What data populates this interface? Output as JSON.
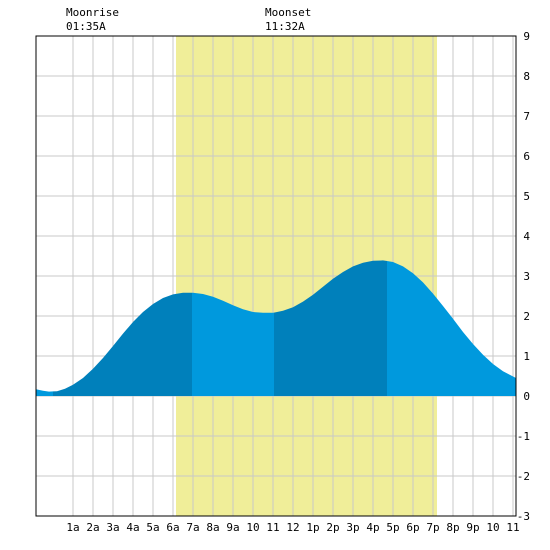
{
  "moon": {
    "rise_label": "Moonrise",
    "rise_time": "01:35A",
    "set_label": "Moonset",
    "set_time": "11:32A"
  },
  "chart_data": {
    "type": "area",
    "x_unit": "hour of day",
    "xlim": [
      -0.85,
      23.15
    ],
    "ylim": [
      -3,
      9
    ],
    "grid": true,
    "x_ticks": [
      {
        "hour": 1,
        "label": "1a"
      },
      {
        "hour": 2,
        "label": "2a"
      },
      {
        "hour": 3,
        "label": "3a"
      },
      {
        "hour": 4,
        "label": "4a"
      },
      {
        "hour": 5,
        "label": "5a"
      },
      {
        "hour": 6,
        "label": "6a"
      },
      {
        "hour": 7,
        "label": "7a"
      },
      {
        "hour": 8,
        "label": "8a"
      },
      {
        "hour": 9,
        "label": "9a"
      },
      {
        "hour": 10,
        "label": "10"
      },
      {
        "hour": 11,
        "label": "11"
      },
      {
        "hour": 12,
        "label": "12"
      },
      {
        "hour": 13,
        "label": "1p"
      },
      {
        "hour": 14,
        "label": "2p"
      },
      {
        "hour": 15,
        "label": "3p"
      },
      {
        "hour": 16,
        "label": "4p"
      },
      {
        "hour": 17,
        "label": "5p"
      },
      {
        "hour": 18,
        "label": "6p"
      },
      {
        "hour": 19,
        "label": "7p"
      },
      {
        "hour": 20,
        "label": "8p"
      },
      {
        "hour": 21,
        "label": "9p"
      },
      {
        "hour": 22,
        "label": "10"
      },
      {
        "hour": 23,
        "label": "11"
      }
    ],
    "y_ticks": [
      -3,
      -2,
      -1,
      0,
      1,
      2,
      3,
      4,
      5,
      6,
      7,
      8,
      9
    ],
    "daylight": {
      "start_hour": 6.15,
      "end_hour": 19.2
    },
    "tide_extremes": [
      {
        "hour": 0.0,
        "height": 0.12,
        "type": "low"
      },
      {
        "hour": 6.95,
        "height": 2.58,
        "type": "high"
      },
      {
        "hour": 11.05,
        "height": 2.08,
        "type": "low"
      },
      {
        "hour": 16.7,
        "height": 3.38,
        "type": "high"
      }
    ],
    "series": [
      {
        "values": [
          [
            -0.85,
            0.17
          ],
          [
            -0.5,
            0.13
          ],
          [
            -0.2,
            0.11
          ],
          [
            0.2,
            0.12
          ],
          [
            0.6,
            0.18
          ],
          [
            1.0,
            0.28
          ],
          [
            1.5,
            0.45
          ],
          [
            2.0,
            0.68
          ],
          [
            2.5,
            0.95
          ],
          [
            3.0,
            1.25
          ],
          [
            3.5,
            1.56
          ],
          [
            4.0,
            1.85
          ],
          [
            4.5,
            2.1
          ],
          [
            5.0,
            2.3
          ],
          [
            5.5,
            2.45
          ],
          [
            6.0,
            2.54
          ],
          [
            6.5,
            2.58
          ],
          [
            7.0,
            2.58
          ],
          [
            7.5,
            2.55
          ],
          [
            8.0,
            2.48
          ],
          [
            8.5,
            2.38
          ],
          [
            9.0,
            2.27
          ],
          [
            9.5,
            2.17
          ],
          [
            10.0,
            2.1
          ],
          [
            10.5,
            2.08
          ],
          [
            11.0,
            2.08
          ],
          [
            11.5,
            2.13
          ],
          [
            12.0,
            2.22
          ],
          [
            12.5,
            2.36
          ],
          [
            13.0,
            2.53
          ],
          [
            13.5,
            2.73
          ],
          [
            14.0,
            2.93
          ],
          [
            14.5,
            3.1
          ],
          [
            15.0,
            3.24
          ],
          [
            15.5,
            3.33
          ],
          [
            16.0,
            3.38
          ],
          [
            16.5,
            3.39
          ],
          [
            17.0,
            3.35
          ],
          [
            17.5,
            3.24
          ],
          [
            18.0,
            3.07
          ],
          [
            18.5,
            2.84
          ],
          [
            19.0,
            2.56
          ],
          [
            19.5,
            2.25
          ],
          [
            20.0,
            1.93
          ],
          [
            20.5,
            1.6
          ],
          [
            21.0,
            1.3
          ],
          [
            21.5,
            1.03
          ],
          [
            22.0,
            0.8
          ],
          [
            22.5,
            0.62
          ],
          [
            23.15,
            0.45
          ]
        ]
      }
    ],
    "colors": {
      "tide_light": "#0099dd",
      "tide_dark": "#0080bb",
      "daylight": "#f0ee99",
      "grid": "#c8c8c8"
    }
  }
}
